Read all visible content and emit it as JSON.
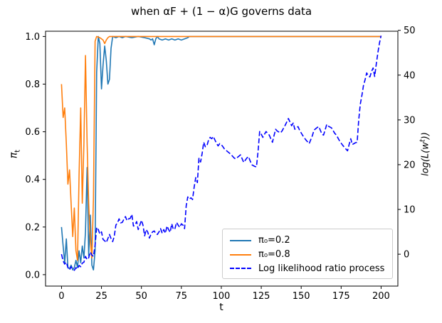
{
  "title": "when αF + (1 − α)G governs data",
  "axes": {
    "x": {
      "label": "t",
      "ticks": [
        {
          "v": 0,
          "label": "0"
        },
        {
          "v": 25,
          "label": "25"
        },
        {
          "v": 50,
          "label": "50"
        },
        {
          "v": 75,
          "label": "75"
        },
        {
          "v": 100,
          "label": "100"
        },
        {
          "v": 125,
          "label": "125"
        },
        {
          "v": 150,
          "label": "150"
        },
        {
          "v": 175,
          "label": "175"
        },
        {
          "v": 200,
          "label": "200"
        }
      ]
    },
    "left": {
      "label": {
        "base": "π",
        "sub": "t"
      },
      "ticks": [
        {
          "v": 0.0,
          "label": "0.0"
        },
        {
          "v": 0.2,
          "label": "0.2"
        },
        {
          "v": 0.4,
          "label": "0.4"
        },
        {
          "v": 0.6,
          "label": "0.6"
        },
        {
          "v": 0.8,
          "label": "0.8"
        },
        {
          "v": 1.0,
          "label": "1.0"
        }
      ]
    },
    "right": {
      "label": {
        "pre": "log(L(w",
        "sup": "t",
        "post": "))"
      },
      "ticks": [
        {
          "v": 0,
          "label": "0"
        },
        {
          "v": 10,
          "label": "10"
        },
        {
          "v": 20,
          "label": "20"
        },
        {
          "v": 30,
          "label": "30"
        },
        {
          "v": 40,
          "label": "40"
        },
        {
          "v": 50,
          "label": "50"
        }
      ]
    }
  },
  "legend": {
    "position": "lower right",
    "entries": [
      {
        "label": "π₀=0.2",
        "color": "#1f77b4",
        "dash": false
      },
      {
        "label": "π₀=0.8",
        "color": "#ff7f0e",
        "dash": false
      },
      {
        "label": "Log likelihood ratio process",
        "color": "#0000ff",
        "dash": true
      }
    ]
  },
  "chart_data": {
    "type": "line",
    "title": "when αF + (1 − α)G governs data",
    "xlabel": "t",
    "ylabel_left": "π_t",
    "ylabel_right": "log(L(w^t))",
    "xlim": [
      -10,
      210.5
    ],
    "ylim_left": [
      -0.048,
      1.022
    ],
    "ylim_right": [
      -7.12,
      49.8
    ],
    "grid": false,
    "series": [
      {
        "name": "π₀=0.2",
        "axis": "left",
        "color": "#1f77b4",
        "dash": false,
        "points": [
          [
            0,
            0.2
          ],
          [
            1,
            0.12
          ],
          [
            2,
            0.05
          ],
          [
            3,
            0.15
          ],
          [
            4,
            0.03
          ],
          [
            5,
            0.025
          ],
          [
            6,
            0.04
          ],
          [
            7,
            0.02
          ],
          [
            8,
            0.03
          ],
          [
            9,
            0.06
          ],
          [
            10,
            0.03
          ],
          [
            11,
            0.1
          ],
          [
            12,
            0.05
          ],
          [
            13,
            0.12
          ],
          [
            14,
            0.07
          ],
          [
            15,
            0.18
          ],
          [
            16,
            0.45
          ],
          [
            17,
            0.08
          ],
          [
            18,
            0.25
          ],
          [
            19,
            0.04
          ],
          [
            20,
            0.02
          ],
          [
            21,
            0.1
          ],
          [
            22,
            0.85
          ],
          [
            23,
            1
          ],
          [
            24,
            0.97
          ],
          [
            25,
            0.78
          ],
          [
            26,
            0.88
          ],
          [
            27,
            0.96
          ],
          [
            28,
            0.9
          ],
          [
            29,
            0.8
          ],
          [
            30,
            0.82
          ],
          [
            31,
            0.95
          ],
          [
            32,
            1
          ],
          [
            34,
            0.995
          ],
          [
            36,
            1
          ],
          [
            38,
            0.995
          ],
          [
            40,
            1
          ],
          [
            44,
            0.995
          ],
          [
            48,
            1
          ],
          [
            52,
            0.995
          ],
          [
            55,
            0.99
          ],
          [
            56,
            0.985
          ],
          [
            57,
            0.99
          ],
          [
            58,
            0.965
          ],
          [
            59,
            0.99
          ],
          [
            60,
            1
          ],
          [
            61,
            0.99
          ],
          [
            63,
            0.985
          ],
          [
            65,
            0.99
          ],
          [
            67,
            0.985
          ],
          [
            69,
            0.99
          ],
          [
            71,
            0.985
          ],
          [
            73,
            0.99
          ],
          [
            75,
            0.985
          ],
          [
            77,
            0.99
          ],
          [
            79,
            0.995
          ],
          [
            80,
            1
          ],
          [
            200,
            1
          ]
        ]
      },
      {
        "name": "π₀=0.8",
        "axis": "left",
        "color": "#ff7f0e",
        "dash": false,
        "points": [
          [
            0,
            0.8
          ],
          [
            1,
            0.66
          ],
          [
            2,
            0.7
          ],
          [
            3,
            0.55
          ],
          [
            4,
            0.38
          ],
          [
            5,
            0.44
          ],
          [
            6,
            0.3
          ],
          [
            7,
            0.16
          ],
          [
            8,
            0.28
          ],
          [
            9,
            0.1
          ],
          [
            10,
            0.06
          ],
          [
            11,
            0.42
          ],
          [
            12,
            0.7
          ],
          [
            13,
            0.3
          ],
          [
            14,
            0.55
          ],
          [
            15,
            0.92
          ],
          [
            16,
            0.55
          ],
          [
            17,
            0.3
          ],
          [
            18,
            0.14
          ],
          [
            19,
            0.07
          ],
          [
            20,
            0.32
          ],
          [
            21,
            0.98
          ],
          [
            22,
            1
          ],
          [
            24,
            0.995
          ],
          [
            25,
            0.99
          ],
          [
            26,
            0.985
          ],
          [
            27,
            0.97
          ],
          [
            28,
            0.985
          ],
          [
            29,
            0.995
          ],
          [
            30,
            1
          ],
          [
            200,
            1
          ]
        ]
      },
      {
        "name": "Log likelihood ratio process",
        "axis": "right",
        "color": "#0000ff",
        "dash": true,
        "points": [
          [
            0,
            0
          ],
          [
            1,
            -1.5
          ],
          [
            2,
            -2.2
          ],
          [
            3,
            -1.8
          ],
          [
            4,
            -3
          ],
          [
            5,
            -3.5
          ],
          [
            6,
            -2.8
          ],
          [
            7,
            -3.2
          ],
          [
            8,
            -3.6
          ],
          [
            9,
            -3
          ],
          [
            10,
            -3.3
          ],
          [
            11,
            -2.5
          ],
          [
            12,
            -2.8
          ],
          [
            13,
            -2
          ],
          [
            14,
            -1.8
          ],
          [
            15,
            -0.5
          ],
          [
            16,
            -1.2
          ],
          [
            17,
            -0.8
          ],
          [
            18,
            0.5
          ],
          [
            19,
            -0.2
          ],
          [
            20,
            -0.5
          ],
          [
            21,
            2
          ],
          [
            22,
            6
          ],
          [
            23,
            5.5
          ],
          [
            24,
            4.5
          ],
          [
            25,
            5
          ],
          [
            26,
            3.3
          ],
          [
            27,
            3
          ],
          [
            28,
            2.6
          ],
          [
            29,
            3.5
          ],
          [
            30,
            4.4
          ],
          [
            31,
            3.5
          ],
          [
            32,
            2.8
          ],
          [
            33,
            4
          ],
          [
            34,
            6.5
          ],
          [
            35,
            7
          ],
          [
            36,
            7.9
          ],
          [
            37,
            7
          ],
          [
            38,
            7.1
          ],
          [
            39,
            7.8
          ],
          [
            40,
            8.4
          ],
          [
            41,
            7.5
          ],
          [
            42,
            7.9
          ],
          [
            43,
            8
          ],
          [
            44,
            8.9
          ],
          [
            45,
            6.3
          ],
          [
            46,
            6.5
          ],
          [
            47,
            7.3
          ],
          [
            48,
            5.5
          ],
          [
            49,
            6.5
          ],
          [
            50,
            7.6
          ],
          [
            51,
            6.5
          ],
          [
            52,
            4.1
          ],
          [
            53,
            5.5
          ],
          [
            54,
            4.9
          ],
          [
            55,
            3.6
          ],
          [
            56,
            4.5
          ],
          [
            57,
            5
          ],
          [
            58,
            5.2
          ],
          [
            59,
            4.6
          ],
          [
            60,
            4.4
          ],
          [
            61,
            5
          ],
          [
            62,
            5.7
          ],
          [
            63,
            4.7
          ],
          [
            64,
            5.5
          ],
          [
            65,
            4.7
          ],
          [
            66,
            6.3
          ],
          [
            67,
            5.5
          ],
          [
            68,
            4.9
          ],
          [
            69,
            6.8
          ],
          [
            70,
            5.5
          ],
          [
            71,
            5.7
          ],
          [
            72,
            7.1
          ],
          [
            73,
            6.5
          ],
          [
            74,
            6
          ],
          [
            75,
            6.8
          ],
          [
            76,
            6.5
          ],
          [
            77,
            5.7
          ],
          [
            78,
            10.8
          ],
          [
            79,
            12.8
          ],
          [
            80,
            12.3
          ],
          [
            81,
            12.6
          ],
          [
            82,
            12.2
          ],
          [
            83,
            15
          ],
          [
            84,
            17.1
          ],
          [
            85,
            16
          ],
          [
            86,
            21.4
          ],
          [
            87,
            20.6
          ],
          [
            88,
            22.5
          ],
          [
            89,
            25
          ],
          [
            90,
            24
          ],
          [
            91,
            24.2
          ],
          [
            92,
            25.5
          ],
          [
            93,
            26.1
          ],
          [
            94,
            25.8
          ],
          [
            95,
            26.3
          ],
          [
            96,
            25.5
          ],
          [
            97,
            24.8
          ],
          [
            98,
            24.2
          ],
          [
            99,
            24.7
          ],
          [
            100,
            24.5
          ],
          [
            101,
            24
          ],
          [
            102,
            23.5
          ],
          [
            104,
            22.9
          ],
          [
            106,
            22.3
          ],
          [
            108,
            21.5
          ],
          [
            109,
            21.3
          ],
          [
            110,
            21.6
          ],
          [
            112,
            22.2
          ],
          [
            114,
            20.5
          ],
          [
            116,
            21.5
          ],
          [
            117,
            21.8
          ],
          [
            119,
            20
          ],
          [
            121,
            19.6
          ],
          [
            122,
            19.5
          ],
          [
            123,
            23
          ],
          [
            124,
            27.4
          ],
          [
            125,
            26.8
          ],
          [
            126,
            26.1
          ],
          [
            127,
            26.8
          ],
          [
            128,
            27.4
          ],
          [
            129,
            27
          ],
          [
            130,
            26.6
          ],
          [
            131,
            25.8
          ],
          [
            132,
            25
          ],
          [
            133,
            26.5
          ],
          [
            134,
            27.9
          ],
          [
            135,
            27.5
          ],
          [
            137,
            27.1
          ],
          [
            138,
            27.5
          ],
          [
            140,
            28.8
          ],
          [
            142,
            30.3
          ],
          [
            143,
            29.5
          ],
          [
            144,
            28.7
          ],
          [
            145,
            29.3
          ],
          [
            146,
            27.9
          ],
          [
            148,
            28.5
          ],
          [
            149,
            27.7
          ],
          [
            151,
            26.5
          ],
          [
            153,
            25.5
          ],
          [
            155,
            24.7
          ],
          [
            157,
            26.5
          ],
          [
            158,
            27.7
          ],
          [
            160,
            28.3
          ],
          [
            161,
            28.5
          ],
          [
            163,
            26.8
          ],
          [
            164,
            26.6
          ],
          [
            166,
            29
          ],
          [
            167,
            28.6
          ],
          [
            169,
            28.2
          ],
          [
            171,
            27
          ],
          [
            172,
            26.6
          ],
          [
            174,
            25.3
          ],
          [
            176,
            24.3
          ],
          [
            178,
            23.5
          ],
          [
            179,
            23.1
          ],
          [
            180,
            24.5
          ],
          [
            181,
            25.8
          ],
          [
            182,
            24.5
          ],
          [
            184,
            24.9
          ],
          [
            185,
            25
          ],
          [
            186,
            30
          ],
          [
            187,
            33.5
          ],
          [
            188,
            35.5
          ],
          [
            189,
            37.7
          ],
          [
            190,
            39
          ],
          [
            191,
            40.5
          ],
          [
            192,
            39.8
          ],
          [
            193,
            39.6
          ],
          [
            194,
            40.8
          ],
          [
            195,
            41.6
          ],
          [
            196,
            39.7
          ],
          [
            197,
            42.5
          ],
          [
            198,
            45
          ],
          [
            199,
            47.2
          ],
          [
            200,
            48.8
          ]
        ]
      }
    ]
  }
}
